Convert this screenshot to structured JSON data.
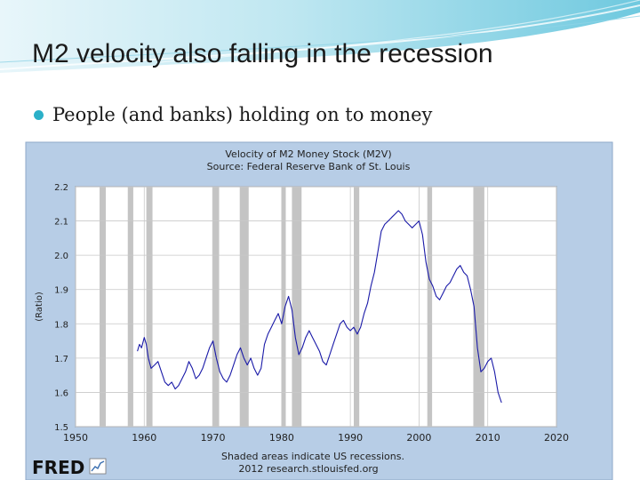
{
  "slide": {
    "title": "M2 velocity also falling in the recession",
    "bullet": "People (and banks) holding on to money"
  },
  "colors": {
    "chart_background": "#b7cde6",
    "plot_background": "#ffffff",
    "recession_shade": "#c4c4c4",
    "series_line": "#1a1aa8",
    "bullet": "#2bb0c8"
  },
  "footer": {
    "logo": "FRED",
    "note_line1": "Shaded areas indicate US recessions.",
    "note_line2": "2012 research.stlouisfed.org"
  },
  "chart_data": {
    "type": "line",
    "title": "Velocity of M2 Money Stock (M2V)",
    "subtitle": "Source: Federal Reserve Bank of St. Louis",
    "xlabel": "",
    "ylabel": "(Ratio)",
    "xlim": [
      1950,
      2020
    ],
    "ylim": [
      1.5,
      2.2
    ],
    "x_ticks": [
      1950,
      1960,
      1970,
      1980,
      1990,
      2000,
      2010,
      2020
    ],
    "y_ticks": [
      "1.5",
      "1.6",
      "1.7",
      "1.8",
      "1.9",
      "2.0",
      "2.1",
      "2.2"
    ],
    "grid": true,
    "recessions": [
      [
        1953.5,
        1954.4
      ],
      [
        1957.6,
        1958.4
      ],
      [
        1960.3,
        1961.2
      ],
      [
        1969.9,
        1970.9
      ],
      [
        1973.9,
        1975.2
      ],
      [
        1980.0,
        1980.6
      ],
      [
        1981.5,
        1982.9
      ],
      [
        1990.5,
        1991.3
      ],
      [
        2001.2,
        2001.9
      ],
      [
        2007.9,
        2009.5
      ]
    ],
    "series": [
      {
        "x": [
          1959.0,
          1959.3,
          1959.6,
          1960.0,
          1960.3,
          1960.6,
          1961.0,
          1961.5,
          1962.0,
          1962.5,
          1963.0,
          1963.5,
          1964.0,
          1964.5,
          1965.0,
          1965.5,
          1966.0,
          1966.5,
          1967.0,
          1967.5,
          1968.0,
          1968.5,
          1969.0,
          1969.5,
          1970.0,
          1970.5,
          1971.0,
          1971.5,
          1972.0,
          1972.5,
          1973.0,
          1973.5,
          1974.0,
          1974.5,
          1975.0,
          1975.5,
          1976.0,
          1976.5,
          1977.0,
          1977.5,
          1978.0,
          1978.5,
          1979.0,
          1979.5,
          1980.0,
          1980.5,
          1981.0,
          1981.5,
          1982.0,
          1982.5,
          1983.0,
          1983.5,
          1984.0,
          1984.5,
          1985.0,
          1985.5,
          1986.0,
          1986.5,
          1987.0,
          1987.5,
          1988.0,
          1988.5,
          1989.0,
          1989.5,
          1990.0,
          1990.5,
          1991.0,
          1991.5,
          1992.0,
          1992.5,
          1993.0,
          1993.5,
          1994.0,
          1994.5,
          1995.0,
          1995.5,
          1996.0,
          1996.5,
          1997.0,
          1997.5,
          1998.0,
          1998.5,
          1999.0,
          1999.5,
          2000.0,
          2000.5,
          2001.0,
          2001.5,
          2002.0,
          2002.5,
          2003.0,
          2003.5,
          2004.0,
          2004.5,
          2005.0,
          2005.5,
          2006.0,
          2006.5,
          2007.0,
          2007.5,
          2008.0,
          2008.5,
          2009.0,
          2009.5,
          2010.0,
          2010.5,
          2011.0,
          2011.5,
          2012.0
        ],
        "values": [
          1.72,
          1.74,
          1.73,
          1.76,
          1.74,
          1.7,
          1.67,
          1.68,
          1.69,
          1.66,
          1.63,
          1.62,
          1.63,
          1.61,
          1.62,
          1.64,
          1.66,
          1.69,
          1.67,
          1.64,
          1.65,
          1.67,
          1.7,
          1.73,
          1.75,
          1.7,
          1.66,
          1.64,
          1.63,
          1.65,
          1.68,
          1.71,
          1.73,
          1.7,
          1.68,
          1.7,
          1.67,
          1.65,
          1.67,
          1.74,
          1.77,
          1.79,
          1.81,
          1.83,
          1.8,
          1.85,
          1.88,
          1.84,
          1.76,
          1.71,
          1.73,
          1.76,
          1.78,
          1.76,
          1.74,
          1.72,
          1.69,
          1.68,
          1.71,
          1.74,
          1.77,
          1.8,
          1.81,
          1.79,
          1.78,
          1.79,
          1.77,
          1.79,
          1.83,
          1.86,
          1.91,
          1.95,
          2.01,
          2.07,
          2.09,
          2.1,
          2.11,
          2.12,
          2.13,
          2.12,
          2.1,
          2.09,
          2.08,
          2.09,
          2.1,
          2.06,
          1.98,
          1.93,
          1.91,
          1.88,
          1.87,
          1.89,
          1.91,
          1.92,
          1.94,
          1.96,
          1.97,
          1.95,
          1.94,
          1.9,
          1.85,
          1.73,
          1.66,
          1.67,
          1.69,
          1.7,
          1.66,
          1.6,
          1.57
        ]
      }
    ]
  }
}
